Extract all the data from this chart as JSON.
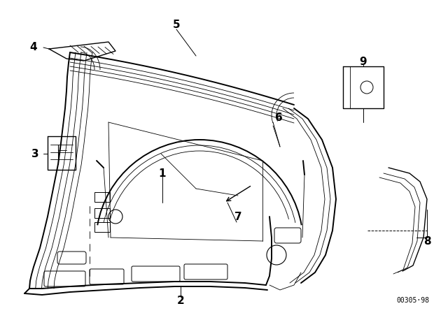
{
  "bg_color": "#ffffff",
  "line_color": "#000000",
  "fig_width": 6.4,
  "fig_height": 4.48,
  "dpi": 100,
  "watermark": "00305·98"
}
